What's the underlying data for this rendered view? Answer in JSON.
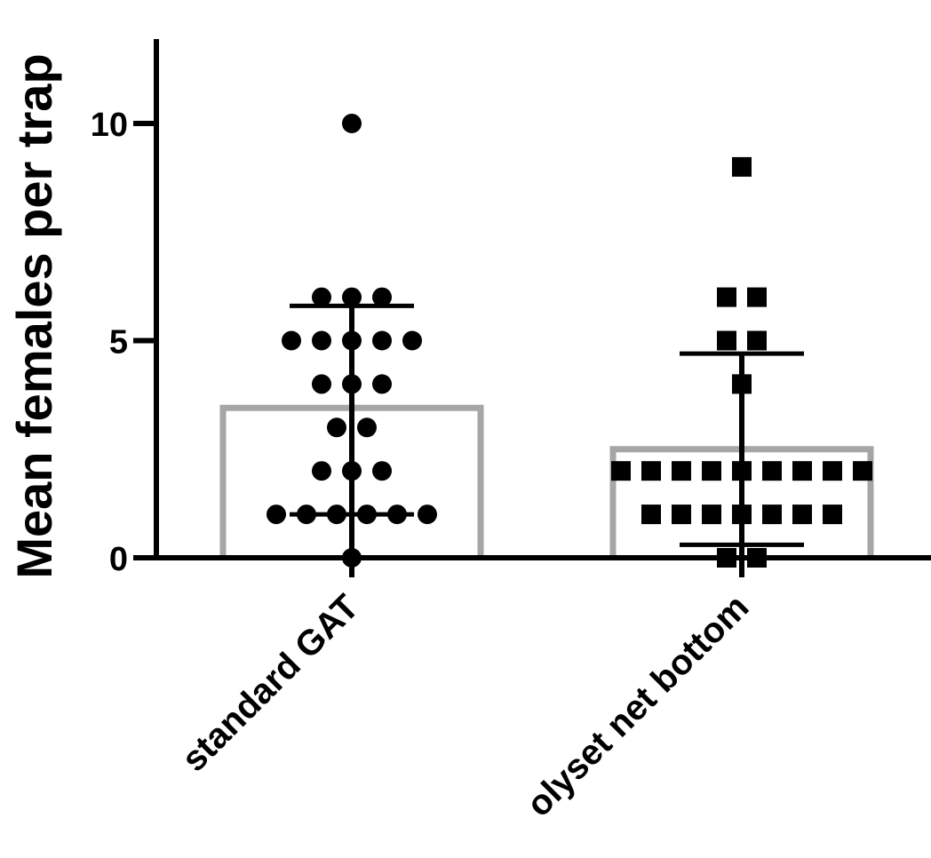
{
  "chart_data": {
    "type": "bar",
    "title": "",
    "xlabel": "",
    "ylabel": "Mean females per trap",
    "ylim": [
      0,
      12
    ],
    "yticks": [
      {
        "value": 0,
        "label": "0"
      },
      {
        "value": 5,
        "label": "5"
      },
      {
        "value": 10,
        "label": "10"
      }
    ],
    "categories": [
      "standard GAT",
      "olyset net bottom"
    ],
    "grid": false,
    "legend": "none",
    "colors": {
      "bar_outline": "#a6a6a6",
      "axis": "#000000",
      "points": "#000000",
      "error_bar": "#000000"
    },
    "series": [
      {
        "category": "standard GAT",
        "mean": 3.45,
        "sd_upper": 5.8,
        "sd_lower": 1.0,
        "marker": "circle",
        "points": [
          0,
          1,
          1,
          1,
          1,
          1,
          1,
          2,
          2,
          2,
          3,
          3,
          4,
          4,
          4,
          5,
          5,
          5,
          5,
          5,
          6,
          6,
          6,
          10
        ]
      },
      {
        "category": "olyset net bottom",
        "mean": 2.5,
        "sd_upper": 4.7,
        "sd_lower": 0.3,
        "marker": "square",
        "points": [
          0,
          0,
          1,
          1,
          1,
          1,
          1,
          1,
          1,
          2,
          2,
          2,
          2,
          2,
          2,
          2,
          2,
          2,
          4,
          5,
          5,
          6,
          6,
          9
        ]
      }
    ]
  }
}
